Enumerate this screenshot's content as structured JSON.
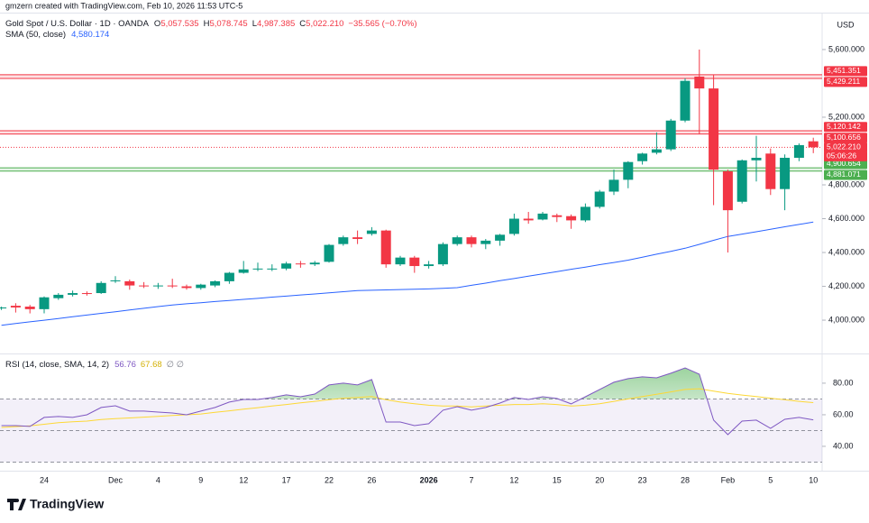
{
  "chart_data": {
    "type": "candlestick",
    "subtitle": "gmzern created with TradingView.com, Feb 10, 2026 11:53 UTC-5",
    "title": "Gold Spot / U.S. Dollar · 1D · OANDA",
    "ohlc_legend": [
      {
        "key": "O",
        "label": "5,057.535"
      },
      {
        "key": "H",
        "label": "5,078.745"
      },
      {
        "key": "L",
        "label": "4,987.385"
      },
      {
        "key": "C",
        "label": "5,022.210"
      }
    ],
    "change_label": "−35.565 (−0.70%)",
    "currency": "USD",
    "up_color": "#089981",
    "down_color": "#f23645",
    "categories": [
      null,
      null,
      null,
      "24",
      null,
      null,
      null,
      null,
      "Dec",
      null,
      null,
      "4",
      null,
      null,
      "9",
      null,
      null,
      "12",
      null,
      null,
      "17",
      null,
      null,
      "22",
      null,
      null,
      "26",
      null,
      null,
      null,
      "2026",
      null,
      null,
      "7",
      null,
      null,
      "12",
      null,
      null,
      "15",
      null,
      null,
      "20",
      null,
      null,
      "23",
      null,
      null,
      "28",
      null,
      null,
      "Feb",
      null,
      null,
      "5",
      null,
      null,
      "10"
    ],
    "open": [
      4070,
      4085,
      4080,
      4065,
      4130,
      4150,
      4160,
      4160,
      4230,
      4230,
      4205,
      4200,
      4205,
      4200,
      4190,
      4205,
      4230,
      4280,
      4300,
      4300,
      4305,
      4335,
      4330,
      4345,
      4450,
      4490,
      4510,
      4530,
      4330,
      4370,
      4320,
      4330,
      4450,
      4490,
      4450,
      4470,
      4510,
      4600,
      4595,
      4620,
      4615,
      4590,
      4670,
      4760,
      4830,
      4940,
      4990,
      5010,
      5180,
      5440,
      5370,
      4880,
      4700,
      4945,
      4985,
      4775,
      4960,
      5057.535
    ],
    "high": [
      4080,
      4100,
      4090,
      4140,
      4160,
      4175,
      4170,
      4230,
      4260,
      4240,
      4225,
      4220,
      4245,
      4210,
      4215,
      4235,
      4285,
      4350,
      4340,
      4330,
      4345,
      4350,
      4350,
      4450,
      4500,
      4530,
      4550,
      4535,
      4380,
      4380,
      4350,
      4460,
      4500,
      4500,
      4480,
      4510,
      4630,
      4640,
      4640,
      4630,
      4625,
      4690,
      4770,
      4890,
      4940,
      4990,
      5110,
      5190,
      5430,
      5600,
      5450,
      4890,
      4950,
      5090,
      5015,
      4980,
      5045,
      5078.745
    ],
    "low": [
      4060,
      4045,
      4040,
      4040,
      4120,
      4140,
      4145,
      4155,
      4220,
      4180,
      4190,
      4185,
      4190,
      4180,
      4180,
      4195,
      4215,
      4275,
      4290,
      4290,
      4295,
      4310,
      4320,
      4340,
      4440,
      4450,
      4500,
      4310,
      4320,
      4280,
      4305,
      4320,
      4440,
      4430,
      4420,
      4440,
      4500,
      4570,
      4590,
      4580,
      4540,
      4580,
      4660,
      4740,
      4780,
      4920,
      4980,
      5000,
      5170,
      5100,
      4680,
      4400,
      4690,
      4820,
      4740,
      4650,
      4940,
      4987.385
    ],
    "close": [
      4075,
      4075,
      4065,
      4135,
      4150,
      4160,
      4155,
      4220,
      4235,
      4205,
      4200,
      4205,
      4200,
      4190,
      4210,
      4230,
      4280,
      4300,
      4305,
      4305,
      4335,
      4330,
      4340,
      4445,
      4490,
      4480,
      4530,
      4330,
      4370,
      4320,
      4330,
      4450,
      4490,
      4450,
      4470,
      4505,
      4600,
      4590,
      4630,
      4610,
      4590,
      4670,
      4760,
      4830,
      4935,
      4985,
      5010,
      5180,
      5415,
      5370,
      4890,
      4650,
      4945,
      4960,
      4775,
      4960,
      5035,
      5022.21
    ],
    "price_label": "5,022.210",
    "countdown": "05:06:26",
    "ylim": [
      3803,
      5813
    ],
    "yticks": [
      {
        "value": 4000,
        "label": "4,000.000"
      },
      {
        "value": 4200,
        "label": "4,200.000"
      },
      {
        "value": 4400,
        "label": "4,400.000"
      },
      {
        "value": 4600,
        "label": "4,600.000"
      },
      {
        "value": 4800,
        "label": "4,800.000"
      },
      {
        "value": 5200,
        "label": "5,200.000"
      },
      {
        "value": 5600,
        "label": "5,600.000"
      }
    ],
    "zones": [
      {
        "color": "#f23645",
        "values": [
          5451.351,
          5429.211
        ],
        "labels": [
          "5,451.351",
          "5,429.211"
        ]
      },
      {
        "color": "#f23645",
        "values": [
          5120.142,
          5100.656
        ],
        "labels": [
          "5,120.142",
          "5,100.656"
        ]
      },
      {
        "color": "#4caf50",
        "values": [
          4900.654,
          4881.071
        ],
        "labels": [
          "4,900.654",
          "4,881.071"
        ]
      }
    ],
    "sma": {
      "name": "SMA (50, close)",
      "color": "#2962ff",
      "last_label": "4,580.174",
      "values": [
        3970,
        3980,
        3990,
        4000,
        4010,
        4020,
        4030,
        4040,
        4050,
        4060,
        4070,
        4080,
        4090,
        4097,
        4103,
        4110,
        4116,
        4123,
        4129,
        4136,
        4142,
        4149,
        4155,
        4162,
        4168,
        4175,
        4177,
        4179,
        4181,
        4183,
        4185,
        4188,
        4192,
        4206,
        4219,
        4233,
        4246,
        4260,
        4274,
        4287,
        4301,
        4314,
        4328,
        4341,
        4355,
        4372,
        4390,
        4407,
        4425,
        4448,
        4472,
        4495,
        4509,
        4523,
        4537,
        4552,
        4566,
        4580.174
      ]
    },
    "rsi": {
      "name": "RSI (14, close, SMA, 14, 2)",
      "color": "#7e57c2",
      "ma_color": "#fdd835",
      "value_label": "56.76",
      "ma_label": "67.68",
      "extra_label": "∅ ∅",
      "values": [
        53.1,
        53.1,
        52.6,
        58.3,
        58.9,
        58.3,
        60,
        64.6,
        65.7,
        62.3,
        62.3,
        61.7,
        61.1,
        60,
        62.3,
        64.6,
        68,
        69.7,
        69.7,
        70.9,
        72.6,
        71.4,
        73.1,
        78.9,
        80,
        78.9,
        82.3,
        55.4,
        55.4,
        53.1,
        54.3,
        62.9,
        65.1,
        62.9,
        64.6,
        67.4,
        70.9,
        69.7,
        71.4,
        70.3,
        66.9,
        71.4,
        76,
        80.6,
        82.9,
        84,
        83.4,
        86.3,
        89.7,
        85.7,
        56.6,
        47.4,
        56,
        56.6,
        51.4,
        57.1,
        58.3,
        56.76
      ],
      "ma_values": [
        52,
        52.5,
        53,
        54,
        55,
        55.5,
        56,
        57,
        57.5,
        58,
        58.5,
        59,
        59.5,
        60,
        60.5,
        61.5,
        62.5,
        63.5,
        64.5,
        65.5,
        66.5,
        67.5,
        68.5,
        69.5,
        70.5,
        71,
        71.5,
        69.5,
        68,
        67,
        66,
        65.5,
        65.5,
        65,
        65.5,
        66,
        66.5,
        66.5,
        67,
        66.5,
        65.5,
        66,
        67,
        68.5,
        70,
        71.5,
        73,
        74.5,
        76,
        76.5,
        75,
        73.5,
        72.5,
        71.5,
        70.5,
        69.5,
        68.5,
        67.68
      ],
      "ylim": [
        25.7,
        97.1
      ],
      "yticks": [
        {
          "value": 40,
          "label": "40.00"
        },
        {
          "value": 60,
          "label": "60.00"
        },
        {
          "value": 80,
          "label": "80.00"
        }
      ],
      "bands": [
        30,
        50,
        70
      ]
    },
    "brand": "TradingView"
  }
}
